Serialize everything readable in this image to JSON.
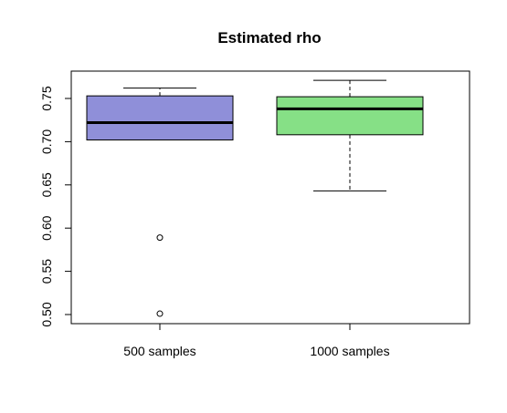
{
  "chart_data": {
    "type": "box",
    "title": "Estimated rho",
    "xlabel": "",
    "ylabel": "",
    "ylim": [
      0.49,
      0.78
    ],
    "yticks": [
      0.5,
      0.55,
      0.6,
      0.65,
      0.7,
      0.75
    ],
    "ytick_labels": [
      "0.50",
      "0.55",
      "0.60",
      "0.65",
      "0.70",
      "0.75"
    ],
    "grid": false,
    "legend": "none",
    "categories": [
      "500 samples",
      "1000 samples"
    ],
    "boxes": [
      {
        "label": "500 samples",
        "color": "#8f8fd9",
        "whisker_low": 0.702,
        "q1": 0.702,
        "median": 0.722,
        "q3": 0.753,
        "whisker_high": 0.762,
        "outliers": [
          0.589,
          0.501
        ]
      },
      {
        "label": "1000 samples",
        "color": "#86e086",
        "whisker_low": 0.643,
        "q1": 0.708,
        "median": 0.738,
        "q3": 0.752,
        "whisker_high": 0.771,
        "outliers": []
      }
    ]
  }
}
